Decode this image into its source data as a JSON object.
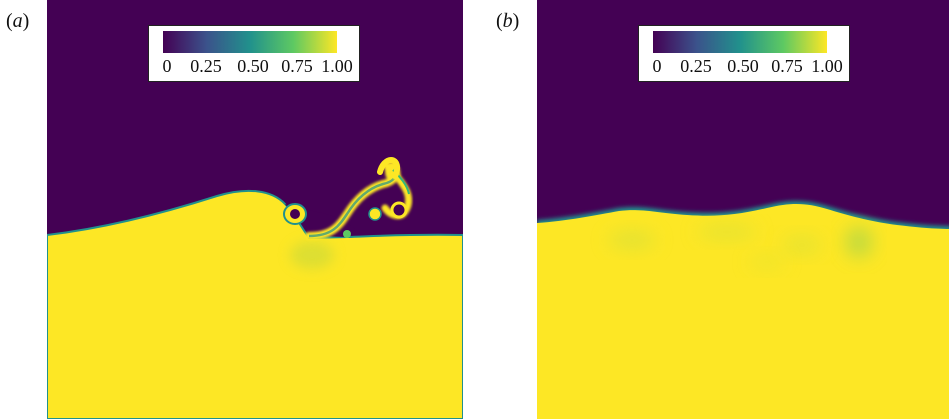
{
  "panels": [
    {
      "label": "(a)"
    },
    {
      "label": "(b)"
    }
  ],
  "colorbar": {
    "colormap": "viridis",
    "range": [
      0,
      1
    ],
    "tick_labels": [
      "0",
      "0.25",
      "0.50",
      "0.75",
      "1.00"
    ],
    "colors": {
      "low": "#440154",
      "high": "#fde725",
      "mid": "#21918c"
    }
  }
}
